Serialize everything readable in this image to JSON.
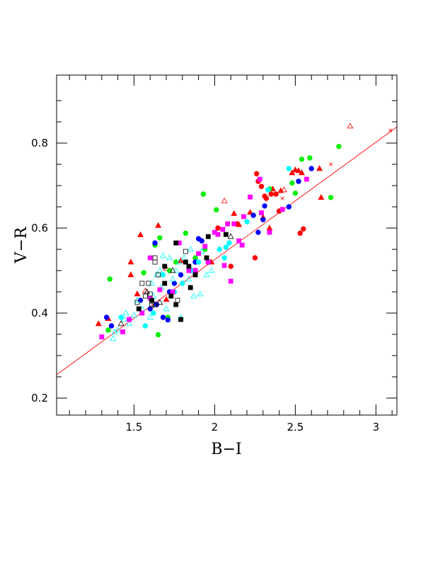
{
  "chart_data": {
    "type": "scatter",
    "title": "",
    "xlabel": "B−I",
    "ylabel": "V−R",
    "xlim": [
      1.02,
      3.13
    ],
    "ylim": [
      0.16,
      0.96
    ],
    "x_ticks": [
      {
        "value": 1.5,
        "label": "1.5"
      },
      {
        "value": 2.0,
        "label": "2"
      },
      {
        "value": 2.5,
        "label": "2.5"
      },
      {
        "value": 3.0,
        "label": "3"
      }
    ],
    "y_ticks": [
      {
        "value": 0.2,
        "label": "0.2"
      },
      {
        "value": 0.4,
        "label": "0.4"
      },
      {
        "value": 0.6,
        "label": "0.6"
      },
      {
        "value": 0.8,
        "label": "0.8"
      }
    ],
    "grid": false,
    "fit_line": {
      "color": "#ff0000",
      "x": [
        1.02,
        3.13
      ],
      "y": [
        0.255,
        0.838
      ]
    },
    "groups": [
      {
        "marker": "circle",
        "filled": true,
        "color": "#ff0000",
        "points": [
          [
            2.26,
            0.728
          ],
          [
            2.27,
            0.71
          ],
          [
            2.29,
            0.698
          ],
          [
            2.31,
            0.675
          ],
          [
            2.32,
            0.67
          ],
          [
            2.38,
            0.68
          ],
          [
            2.4,
            0.64
          ],
          [
            2.53,
            0.588
          ],
          [
            2.55,
            0.598
          ],
          [
            2.25,
            0.53
          ],
          [
            2.1,
            0.51
          ],
          [
            2.02,
            0.6
          ],
          [
            2.14,
            0.61
          ],
          [
            2.35,
            0.68
          ]
        ]
      },
      {
        "marker": "triangle",
        "filled": true,
        "color": "#ff0000",
        "points": [
          [
            1.28,
            0.375
          ],
          [
            1.34,
            0.387
          ],
          [
            1.48,
            0.49
          ],
          [
            1.52,
            0.445
          ],
          [
            1.48,
            0.52
          ],
          [
            1.54,
            0.584
          ],
          [
            1.65,
            0.606
          ],
          [
            1.79,
            0.523
          ],
          [
            2.12,
            0.634
          ],
          [
            2.15,
            0.608
          ],
          [
            2.22,
            0.637
          ],
          [
            2.34,
            0.6
          ],
          [
            2.36,
            0.692
          ],
          [
            2.41,
            0.688
          ],
          [
            2.48,
            0.73
          ],
          [
            2.5,
            0.737
          ],
          [
            2.52,
            0.735
          ],
          [
            2.54,
            0.73
          ],
          [
            2.65,
            0.74
          ],
          [
            2.66,
            0.672
          ],
          [
            2.3,
            0.625
          ],
          [
            1.98,
            0.52
          ],
          [
            1.7,
            0.432
          ]
        ]
      },
      {
        "marker": "triangle",
        "filled": false,
        "color": "#ff0000",
        "points": [
          [
            2.84,
            0.84
          ],
          [
            2.06,
            0.664
          ],
          [
            2.43,
            0.69
          ],
          [
            1.88,
            0.5
          ],
          [
            1.7,
            0.505
          ],
          [
            1.57,
            0.452
          ]
        ]
      },
      {
        "marker": "x",
        "filled": false,
        "color": "#ff0000",
        "points": [
          [
            2.72,
            0.75
          ],
          [
            3.09,
            0.83
          ],
          [
            2.42,
            0.67
          ]
        ]
      },
      {
        "marker": "circle",
        "filled": true,
        "color": "#00ee00",
        "points": [
          [
            1.35,
            0.48
          ],
          [
            1.63,
            0.56
          ],
          [
            1.66,
            0.577
          ],
          [
            1.82,
            0.588
          ],
          [
            1.93,
            0.68
          ],
          [
            2.01,
            0.643
          ],
          [
            2.54,
            0.762
          ],
          [
            2.59,
            0.765
          ],
          [
            2.77,
            0.792
          ],
          [
            2.72,
            0.672
          ],
          [
            2.48,
            0.706
          ],
          [
            2.5,
            0.682
          ],
          [
            2.34,
            0.692
          ],
          [
            1.65,
            0.349
          ],
          [
            1.72,
            0.5
          ],
          [
            1.76,
            0.52
          ],
          [
            1.56,
            0.495
          ],
          [
            1.88,
            0.53
          ],
          [
            1.94,
            0.55
          ],
          [
            1.34,
            0.36
          ],
          [
            1.71,
            0.39
          ]
        ]
      },
      {
        "marker": "circle",
        "filled": true,
        "color": "#0000ff",
        "points": [
          [
            1.33,
            0.39
          ],
          [
            1.36,
            0.37
          ],
          [
            1.6,
            0.41
          ],
          [
            1.64,
            0.42
          ],
          [
            1.68,
            0.39
          ],
          [
            1.72,
            0.45
          ],
          [
            1.79,
            0.49
          ],
          [
            1.85,
            0.5
          ],
          [
            1.88,
            0.52
          ],
          [
            1.9,
            0.575
          ],
          [
            1.92,
            0.57
          ],
          [
            1.96,
            0.52
          ],
          [
            2.24,
            0.63
          ],
          [
            2.27,
            0.59
          ],
          [
            2.3,
            0.62
          ],
          [
            2.31,
            0.652
          ],
          [
            2.46,
            0.65
          ],
          [
            2.52,
            0.71
          ],
          [
            2.6,
            0.74
          ],
          [
            1.63,
            0.565
          ],
          [
            1.75,
            0.47
          ],
          [
            1.71,
            0.384
          ],
          [
            1.54,
            0.43
          ]
        ]
      },
      {
        "marker": "circle",
        "filled": true,
        "color": "#00ffff",
        "points": [
          [
            1.42,
            0.39
          ],
          [
            1.57,
            0.37
          ],
          [
            1.62,
            0.4
          ],
          [
            1.75,
            0.45
          ],
          [
            1.8,
            0.47
          ],
          [
            1.86,
            0.5
          ],
          [
            1.9,
            0.52
          ],
          [
            2.03,
            0.55
          ],
          [
            2.07,
            0.555
          ],
          [
            2.09,
            0.565
          ],
          [
            2.2,
            0.615
          ],
          [
            2.33,
            0.69
          ],
          [
            2.46,
            0.74
          ],
          [
            2.06,
            0.53
          ],
          [
            1.68,
            0.49
          ]
        ]
      },
      {
        "marker": "triangle",
        "filled": false,
        "color": "#00ffff",
        "points": [
          [
            1.37,
            0.34
          ],
          [
            1.4,
            0.36
          ],
          [
            1.44,
            0.385
          ],
          [
            1.47,
            0.375
          ],
          [
            1.5,
            0.395
          ],
          [
            1.55,
            0.41
          ],
          [
            1.58,
            0.45
          ],
          [
            1.61,
            0.47
          ],
          [
            1.64,
            0.49
          ],
          [
            1.66,
            0.5
          ],
          [
            1.68,
            0.535
          ],
          [
            1.72,
            0.53
          ],
          [
            1.76,
            0.5
          ],
          [
            1.79,
            0.39
          ],
          [
            1.84,
            0.48
          ],
          [
            1.87,
            0.44
          ],
          [
            1.91,
            0.445
          ],
          [
            1.95,
            0.49
          ],
          [
            1.98,
            0.5
          ],
          [
            1.7,
            0.41
          ],
          [
            1.62,
            0.44
          ],
          [
            1.52,
            0.43
          ],
          [
            1.45,
            0.4
          ],
          [
            1.38,
            0.355
          ],
          [
            1.78,
            0.52
          ],
          [
            1.85,
            0.55
          ],
          [
            1.92,
            0.545
          ],
          [
            1.67,
            0.46
          ],
          [
            1.74,
            0.48
          ],
          [
            1.81,
            0.53
          ],
          [
            1.6,
            0.39
          ]
        ]
      },
      {
        "marker": "square",
        "filled": true,
        "color": "#ff00ff",
        "points": [
          [
            1.3,
            0.344
          ],
          [
            1.43,
            0.356
          ],
          [
            1.47,
            0.385
          ],
          [
            1.55,
            0.4
          ],
          [
            1.6,
            0.435
          ],
          [
            1.66,
            0.455
          ],
          [
            1.78,
            0.565
          ],
          [
            1.84,
            0.5
          ],
          [
            1.9,
            0.54
          ],
          [
            1.94,
            0.557
          ],
          [
            2.0,
            0.59
          ],
          [
            2.02,
            0.585
          ],
          [
            2.05,
            0.597
          ],
          [
            2.08,
            0.61
          ],
          [
            2.1,
            0.475
          ],
          [
            2.12,
            0.61
          ],
          [
            2.15,
            0.57
          ],
          [
            2.17,
            0.56
          ],
          [
            2.18,
            0.627
          ],
          [
            2.22,
            0.673
          ],
          [
            2.28,
            0.715
          ],
          [
            2.29,
            0.636
          ],
          [
            2.34,
            0.59
          ],
          [
            2.42,
            0.644
          ],
          [
            2.57,
            0.715
          ],
          [
            1.96,
            0.52
          ],
          [
            1.88,
            0.5
          ],
          [
            1.74,
            0.45
          ],
          [
            1.6,
            0.53
          ],
          [
            2.06,
            0.512
          ]
        ]
      },
      {
        "marker": "square",
        "filled": true,
        "color": "#000000",
        "points": [
          [
            1.53,
            0.41
          ],
          [
            1.61,
            0.43
          ],
          [
            1.69,
            0.51
          ],
          [
            1.73,
            0.44
          ],
          [
            1.76,
            0.565
          ],
          [
            1.79,
            0.385
          ],
          [
            1.82,
            0.52
          ],
          [
            1.85,
            0.46
          ],
          [
            1.88,
            0.49
          ],
          [
            1.95,
            0.53
          ],
          [
            1.96,
            0.58
          ],
          [
            2.07,
            0.585
          ],
          [
            1.76,
            0.42
          ],
          [
            1.69,
            0.47
          ],
          [
            1.84,
            0.51
          ]
        ]
      },
      {
        "marker": "square",
        "filled": false,
        "color": "#000000",
        "points": [
          [
            1.55,
            0.47
          ],
          [
            1.57,
            0.44
          ],
          [
            1.6,
            0.445
          ],
          [
            1.61,
            0.418
          ],
          [
            1.63,
            0.52
          ],
          [
            1.65,
            0.49
          ],
          [
            1.77,
            0.43
          ],
          [
            1.82,
            0.545
          ],
          [
            1.52,
            0.425
          ],
          [
            1.63,
            0.53
          ],
          [
            1.59,
            0.47
          ]
        ]
      },
      {
        "marker": "triangle",
        "filled": false,
        "color": "#000000",
        "points": [
          [
            1.42,
            0.375
          ],
          [
            1.58,
            0.45
          ],
          [
            1.63,
            0.42
          ],
          [
            1.66,
            0.425
          ],
          [
            2.1,
            0.58
          ],
          [
            1.74,
            0.5
          ]
        ]
      }
    ]
  }
}
